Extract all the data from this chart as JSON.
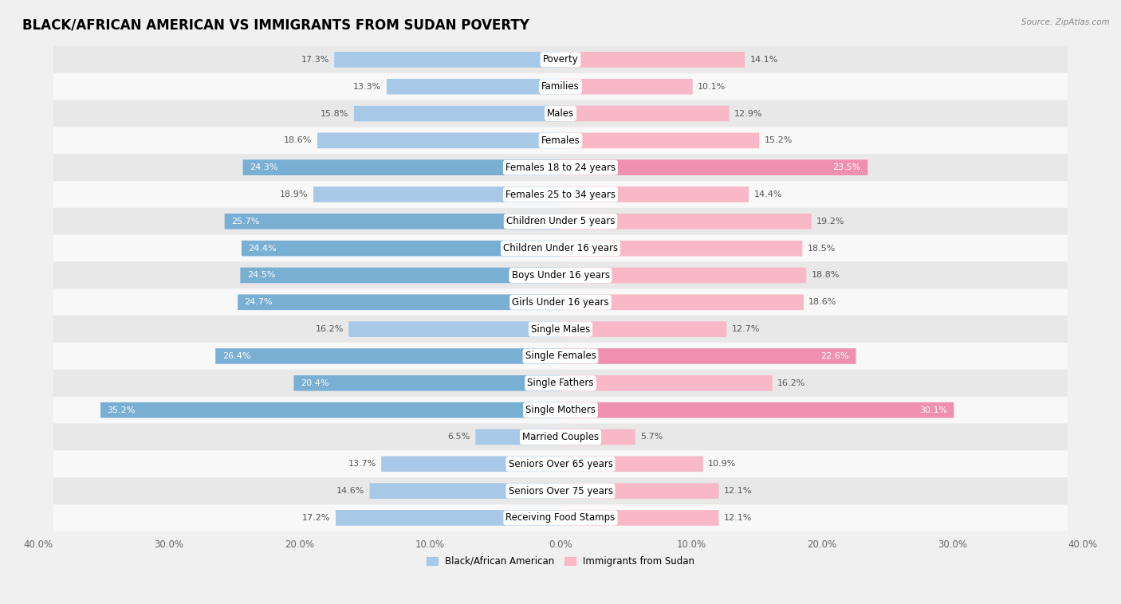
{
  "title": "BLACK/AFRICAN AMERICAN VS IMMIGRANTS FROM SUDAN POVERTY",
  "source": "Source: ZipAtlas.com",
  "categories": [
    "Poverty",
    "Families",
    "Males",
    "Females",
    "Females 18 to 24 years",
    "Females 25 to 34 years",
    "Children Under 5 years",
    "Children Under 16 years",
    "Boys Under 16 years",
    "Girls Under 16 years",
    "Single Males",
    "Single Females",
    "Single Fathers",
    "Single Mothers",
    "Married Couples",
    "Seniors Over 65 years",
    "Seniors Over 75 years",
    "Receiving Food Stamps"
  ],
  "left_values": [
    17.3,
    13.3,
    15.8,
    18.6,
    24.3,
    18.9,
    25.7,
    24.4,
    24.5,
    24.7,
    16.2,
    26.4,
    20.4,
    35.2,
    6.5,
    13.7,
    14.6,
    17.2
  ],
  "right_values": [
    14.1,
    10.1,
    12.9,
    15.2,
    23.5,
    14.4,
    19.2,
    18.5,
    18.8,
    18.6,
    12.7,
    22.6,
    16.2,
    30.1,
    5.7,
    10.9,
    12.1,
    12.1
  ],
  "left_color_normal": "#a8c8e8",
  "left_color_highlight": "#7aafd4",
  "right_color_normal": "#f8b8c8",
  "right_color_highlight": "#f090b0",
  "highlight_threshold": 20.0,
  "background_color": "#f0f0f0",
  "row_even_color": "#e8e8e8",
  "row_odd_color": "#f8f8f8",
  "xlim": 40.0,
  "legend_left": "Black/African American",
  "legend_right": "Immigrants from Sudan",
  "title_fontsize": 12,
  "label_fontsize": 8.5,
  "value_fontsize": 8.0
}
